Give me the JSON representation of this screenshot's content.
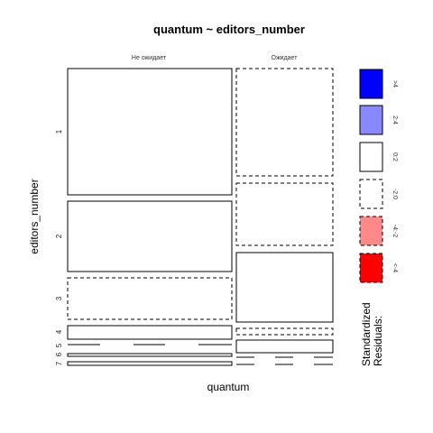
{
  "chart_data": {
    "type": "mosaic",
    "title": "quantum ~ editors_number",
    "xlabel": "quantum",
    "ylabel": "editors_number",
    "quantum_levels": [
      "Не ожидает",
      "Ожидает"
    ],
    "editors_levels": [
      "1",
      "2",
      "3",
      "4",
      "5",
      "6",
      "7"
    ],
    "cells": [
      {
        "editors": "1",
        "quantum": "Не ожидает",
        "share": 0.6,
        "residual_class": "0:2"
      },
      {
        "editors": "1",
        "quantum": "Ожидает",
        "share": 0.4,
        "residual_class": "-2:0"
      },
      {
        "editors": "2",
        "quantum": "Не ожидает",
        "share": 0.6,
        "residual_class": "0:2"
      },
      {
        "editors": "2",
        "quantum": "Ожидает",
        "share": 0.4,
        "residual_class": "-2:0"
      },
      {
        "editors": "3",
        "quantum": "Не ожидает",
        "share": 0.39,
        "residual_class": "-2:0"
      },
      {
        "editors": "3",
        "quantum": "Ожидает",
        "share": 0.61,
        "residual_class": "0:2"
      },
      {
        "editors": "4",
        "quantum": "Не ожидает",
        "share": 0.64,
        "residual_class": "0:2"
      },
      {
        "editors": "4",
        "quantum": "Ожидает",
        "share": 0.36,
        "residual_class": "-2:0"
      },
      {
        "editors": "5",
        "quantum": "Не ожидает",
        "share": 0.0,
        "residual_class": "-2:0"
      },
      {
        "editors": "5",
        "quantum": "Ожидает",
        "share": 1.0,
        "residual_class": "0:2"
      },
      {
        "editors": "6",
        "quantum": "Не ожидает",
        "share": 1.0,
        "residual_class": "0:2"
      },
      {
        "editors": "6",
        "quantum": "Ожидает",
        "share": 0.0,
        "residual_class": "-2:0"
      },
      {
        "editors": "7",
        "quantum": "Не ожидает",
        "share": 1.0,
        "residual_class": "0:2"
      },
      {
        "editors": "7",
        "quantum": "Ожидает",
        "share": 0.0,
        "residual_class": "-2:0"
      }
    ],
    "legend": {
      "title_lines": [
        "Standardized",
        "Residuals:"
      ],
      "entries": [
        {
          "label": ">4",
          "color": "#0000ff",
          "dashed": false
        },
        {
          "label": "2:4",
          "color": "#8888ff",
          "dashed": false
        },
        {
          "label": "0:2",
          "color": "#ffffff",
          "dashed": false
        },
        {
          "label": "-2:0",
          "color": "#ffffff",
          "dashed": true
        },
        {
          "label": "-4:-2",
          "color": "#ff8888",
          "dashed": true
        },
        {
          "label": "<-4",
          "color": "#ff0000",
          "dashed": true
        }
      ]
    }
  }
}
